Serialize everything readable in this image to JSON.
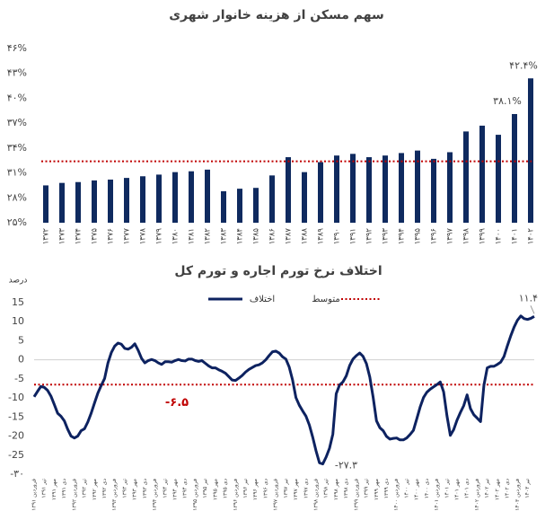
{
  "chart_data": [
    {
      "type": "bar",
      "title": "سهم مسکن از هزینه خانوار شهری",
      "categories": [
        "۱۳۷۲",
        "۱۳۷۳",
        "۱۳۷۴",
        "۱۳۷۵",
        "۱۳۷۶",
        "۱۳۷۷",
        "۱۳۷۸",
        "۱۳۷۹",
        "۱۳۸۰",
        "۱۳۸۱",
        "۱۳۸۲",
        "۱۳۸۳",
        "۱۳۸۴",
        "۱۳۸۵",
        "۱۳۸۶",
        "۱۳۸۷",
        "۱۳۸۸",
        "۱۳۸۹",
        "۱۳۹۰",
        "۱۳۹۱",
        "۱۳۹۲",
        "۱۳۹۳",
        "۱۳۹۴",
        "۱۳۹۵",
        "۱۳۹۶",
        "۱۳۹۷",
        "۱۳۹۸",
        "۱۳۹۹",
        "۱۴۰۰",
        "۱۴۰۱",
        "۱۴۰۲"
      ],
      "values": [
        29.5,
        29.8,
        29.9,
        30.1,
        30.2,
        30.4,
        30.6,
        30.8,
        31.1,
        31.2,
        31.4,
        28.8,
        29.1,
        29.2,
        30.7,
        32.9,
        31.1,
        32.3,
        33.1,
        33.3,
        32.9,
        33.1,
        33.4,
        33.7,
        32.7,
        33.5,
        36.0,
        36.7,
        35.6,
        38.1,
        42.4
      ],
      "value_labels": [
        null,
        null,
        null,
        null,
        null,
        null,
        null,
        null,
        null,
        null,
        null,
        null,
        null,
        null,
        null,
        null,
        null,
        null,
        null,
        null,
        null,
        null,
        null,
        null,
        null,
        null,
        null,
        null,
        null,
        "۳۸.۱%",
        "۴۲.۴%"
      ],
      "color": "#0f2a5f",
      "average": 32.4,
      "average_color": "#c00000",
      "ylim": [
        25,
        46
      ],
      "yticks": [
        {
          "value": 25,
          "label": "۲۵%"
        },
        {
          "value": 28,
          "label": "۲۸%"
        },
        {
          "value": 31,
          "label": "۳۱%"
        },
        {
          "value": 34,
          "label": "۳۴%"
        },
        {
          "value": 37,
          "label": "۳۷%"
        },
        {
          "value": 40,
          "label": "۴۰%"
        },
        {
          "value": 43,
          "label": "۴۳%"
        },
        {
          "value": 46,
          "label": "۴۶%"
        }
      ],
      "grid": false
    },
    {
      "type": "line",
      "title": "اختلاف نرخ تورم اجاره و تورم کل",
      "ylabel": "درصد",
      "categories": [
        "فروردین ۱۳۹۱",
        null,
        null,
        "تیر ۱۳۹۱",
        null,
        null,
        "مهر ۱۳۹۱",
        null,
        null,
        "دی ۱۳۹۱",
        null,
        null,
        "فروردین ۱۳۹۲",
        null,
        null,
        "تیر ۱۳۹۲",
        null,
        null,
        "مهر ۱۳۹۲",
        null,
        null,
        "دی ۱۳۹۲",
        null,
        null,
        "فروردین ۱۳۹۳",
        null,
        null,
        "تیر ۱۳۹۳",
        null,
        null,
        "مهر ۱۳۹۳",
        null,
        null,
        "دی ۱۳۹۳",
        null,
        null,
        "فروردین ۱۳۹۴",
        null,
        null,
        "تیر ۱۳۹۴",
        null,
        null,
        "مهر ۱۳۹۴",
        null,
        null,
        "دی ۱۳۹۴",
        null,
        null,
        "فروردین ۱۳۹۵",
        null,
        null,
        "تیر ۱۳۹۵",
        null,
        null,
        "مهر ۱۳۹۵",
        null,
        null,
        "دی ۱۳۹۵",
        null,
        null,
        "فروردین ۱۳۹۶",
        null,
        null,
        "تیر ۱۳۹۶",
        null,
        null,
        "مهر ۱۳۹۶",
        null,
        null,
        "دی ۱۳۹۶",
        null,
        null,
        "فروردین ۱۳۹۷",
        null,
        null,
        "تیر ۱۳۹۷",
        null,
        null,
        "مهر ۱۳۹۷",
        null,
        null,
        "دی ۱۳۹۷",
        null,
        null,
        "فروردین ۱۳۹۸",
        null,
        null,
        "تیر ۱۳۹۸",
        null,
        null,
        "مهر ۱۳۹۸",
        null,
        null,
        "دی ۱۳۹۸",
        null,
        null,
        "فروردین ۱۳۹۹",
        null,
        null,
        "تیر ۱۳۹۹",
        null,
        null,
        "مهر ۱۳۹۹",
        null,
        null,
        "دی ۱۳۹۹",
        null,
        null,
        "فروردین ۱۴۰۰",
        null,
        null,
        "تیر ۱۴۰۰",
        null,
        null,
        "مهر ۱۴۰۰",
        null,
        null,
        "دی ۱۴۰۰",
        null,
        null,
        "فروردین ۱۴۰۱",
        null,
        null,
        "تیر ۱۴۰۱",
        null,
        null,
        "مهر ۱۴۰۱",
        null,
        null,
        "دی ۱۴۰۱",
        null,
        null,
        "فروردین ۱۴۰۲",
        null,
        null,
        "تیر ۱۴۰۲",
        null,
        null,
        "مهر ۱۴۰۲",
        null,
        null,
        "دی ۱۴۰۲",
        null,
        null,
        "فروردین ۱۴۰۳",
        null,
        null,
        "تیر ۱۴۰۳",
        null,
        null
      ],
      "series": [
        {
          "name": "اختلاف",
          "color": "#0d2260",
          "values": [
            -9.7,
            -8.3,
            -7,
            -7.2,
            -8,
            -9.5,
            -11.7,
            -14,
            -14.8,
            -16,
            -18.2,
            -20,
            -20.5,
            -20,
            -18.6,
            -18.1,
            -16.3,
            -14,
            -11.3,
            -8.7,
            -6.7,
            -4.9,
            -0.8,
            1.9,
            3.6,
            4.4,
            4.1,
            3,
            2.8,
            3.3,
            4.2,
            2.5,
            0.4,
            -0.8,
            -0.2,
            0.1,
            -0.2,
            -0.8,
            -1.2,
            -0.5,
            -0.5,
            -0.6,
            -0.2,
            0.1,
            -0.2,
            -0.3,
            0.2,
            0.2,
            -0.2,
            -0.4,
            -0.2,
            -0.9,
            -1.6,
            -2.1,
            -2.1,
            -2.6,
            -3,
            -3.5,
            -4.4,
            -5.3,
            -5.4,
            -4.8,
            -4.1,
            -3.2,
            -2.5,
            -2,
            -1.5,
            -1.3,
            -0.8,
            0,
            1.1,
            2.1,
            2.3,
            1.8,
            0.8,
            0.2,
            -1.9,
            -5.3,
            -9.9,
            -11.9,
            -13.4,
            -14.8,
            -17.1,
            -20.3,
            -23.9,
            -27,
            -27.3,
            -25.5,
            -23.2,
            -19.5,
            -8.9,
            -6.6,
            -5.8,
            -4.2,
            -1.5,
            0.2,
            1.1,
            1.8,
            0.9,
            -1,
            -4.5,
            -9.8,
            -16,
            -17.8,
            -18.6,
            -20.1,
            -20.8,
            -20.6,
            -20.5,
            -21,
            -21,
            -20.5,
            -19.6,
            -18.5,
            -15.5,
            -12.4,
            -9.9,
            -8.5,
            -7.7,
            -7.1,
            -6.5,
            -5.8,
            -8.4,
            -14.7,
            -19.8,
            -18.3,
            -15.8,
            -13.8,
            -12,
            -9.2,
            -12.8,
            -14.4,
            -15.3,
            -16.2,
            -6.7,
            -2.1,
            -1.7,
            -1.7,
            -1.2,
            -0.6,
            0.9,
            3.7,
            6.3,
            8.6,
            10.4,
            11.5,
            10.8,
            10.6,
            10.9,
            11.4
          ],
          "value_labels": [
            null,
            null,
            null,
            null,
            null,
            null,
            null,
            null,
            null,
            null,
            null,
            null,
            null,
            null,
            null,
            null,
            null,
            null,
            null,
            null,
            null,
            null,
            null,
            null,
            null,
            null,
            null,
            null,
            null,
            null,
            null,
            null,
            null,
            null,
            null,
            null,
            null,
            null,
            null,
            null,
            null,
            null,
            null,
            null,
            null,
            null,
            null,
            null,
            null,
            null,
            null,
            null,
            null,
            null,
            null,
            null,
            null,
            null,
            null,
            null,
            null,
            null,
            null,
            null,
            null,
            null,
            null,
            null,
            null,
            null,
            null,
            null,
            null,
            null,
            null,
            null,
            null,
            null,
            null,
            null,
            null,
            null,
            null,
            null,
            null,
            null,
            "-۲۷.۳",
            null,
            null,
            null,
            null,
            null,
            null,
            null,
            null,
            null,
            null,
            null,
            null,
            null,
            null,
            null,
            null,
            null,
            null,
            null,
            null,
            null,
            null,
            null,
            null,
            null,
            null,
            null,
            null,
            null,
            null,
            null,
            null,
            null,
            null,
            null,
            null,
            null,
            null,
            null,
            null,
            null,
            null,
            null,
            null,
            null,
            null,
            null,
            null,
            null,
            null,
            null,
            null,
            null,
            null,
            null,
            null,
            null,
            null,
            null,
            null,
            null,
            null,
            "۱۱.۴"
          ]
        }
      ],
      "average": {
        "name": "متوسط",
        "color": "#c00000",
        "value": -6.5,
        "label": "-۶.۵"
      },
      "ylim": [
        -30,
        15
      ],
      "yticks": [
        15,
        10,
        5,
        0,
        -5,
        -10,
        -15,
        -20,
        -25,
        {
          "value": -30,
          "label": "-۳۰"
        }
      ],
      "grid": false
    }
  ]
}
